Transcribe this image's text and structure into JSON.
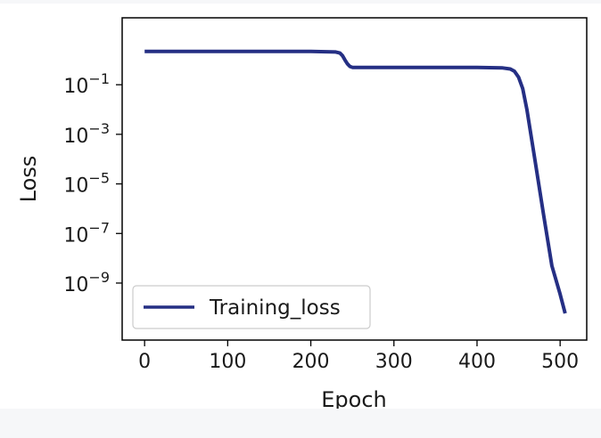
{
  "chart_data": {
    "type": "line",
    "xlabel": "Epoch",
    "ylabel": "Loss",
    "xlim": [
      -27,
      532
    ],
    "ylim_log10": [
      -11.3,
      1.7
    ],
    "yscale": "log",
    "x_ticks": [
      0,
      100,
      200,
      300,
      400,
      500
    ],
    "x_tick_labels": [
      "0",
      "100",
      "200",
      "300",
      "400",
      "500"
    ],
    "y_ticks_log10": [
      -1,
      -3,
      -5,
      -7,
      -9
    ],
    "y_tick_labels": [
      {
        "base": "10",
        "exp": "−1"
      },
      {
        "base": "10",
        "exp": "−3"
      },
      {
        "base": "10",
        "exp": "−5"
      },
      {
        "base": "10",
        "exp": "−7"
      },
      {
        "base": "10",
        "exp": "−9"
      }
    ],
    "grid": false,
    "legend_position": "lower-left",
    "series": [
      {
        "name": "Training_loss",
        "color": "#252f84",
        "x": [
          0,
          100,
          200,
          230,
          235,
          238,
          241,
          244,
          247,
          250,
          300,
          400,
          430,
          440,
          445,
          450,
          455,
          460,
          470,
          480,
          490,
          500,
          506
        ],
        "y": [
          2.2,
          2.2,
          2.2,
          2.1,
          1.9,
          1.5,
          1.0,
          0.7,
          0.55,
          0.5,
          0.5,
          0.5,
          0.48,
          0.43,
          0.35,
          0.2,
          0.07,
          0.01,
          8e-05,
          6e-07,
          5e-09,
          3.5e-10,
          6e-11
        ]
      }
    ]
  }
}
